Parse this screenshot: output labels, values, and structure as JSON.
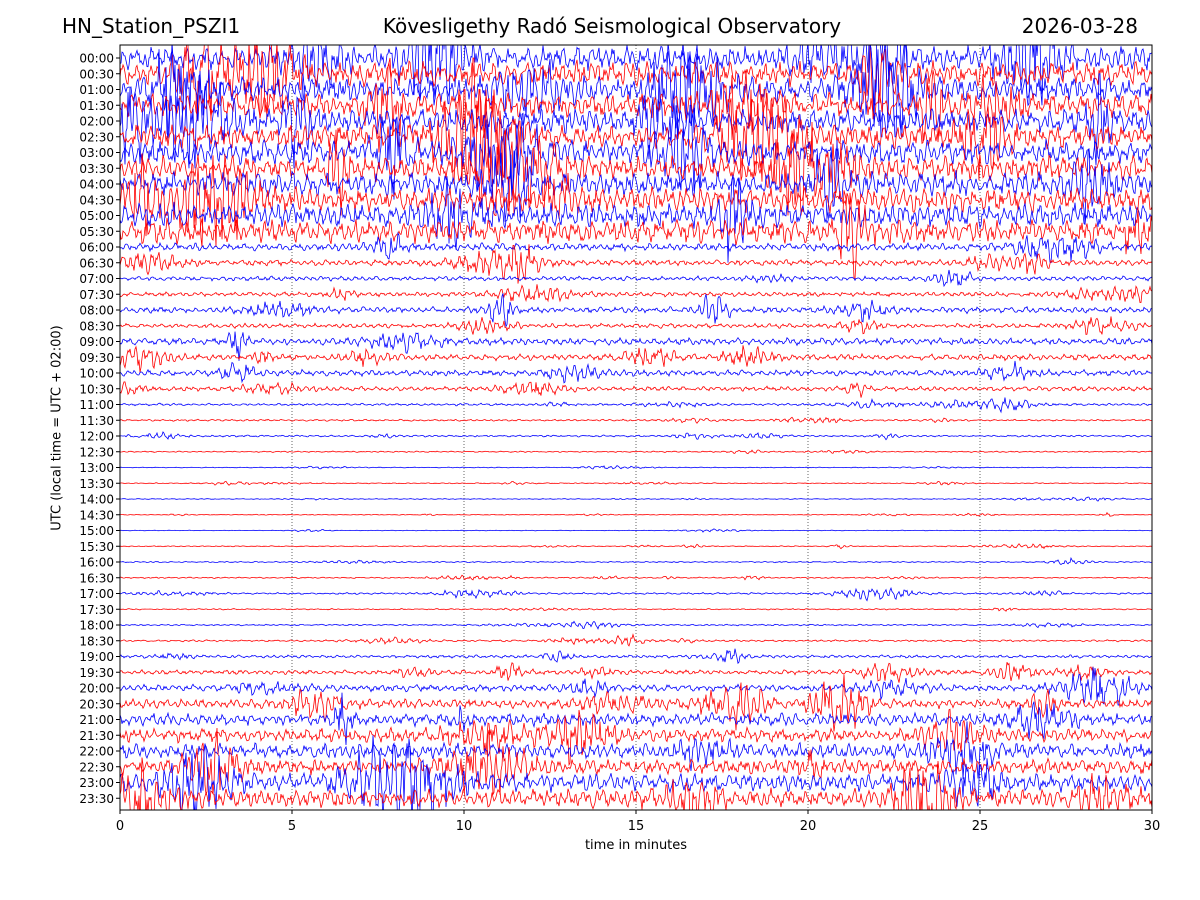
{
  "header": {
    "station": "HN_Station_PSZI1",
    "title": "Kövesligethy Radó Seismological Observatory",
    "date": "2026-03-28"
  },
  "chart_data": {
    "type": "line",
    "title": "Kövesligethy Radó Seismological Observatory",
    "xlabel": "time in minutes",
    "ylabel": "UTC (local time = UTC + 02:00)",
    "xlim": [
      0,
      30
    ],
    "xticks": [
      0,
      5,
      10,
      15,
      20,
      25,
      30
    ],
    "x_gridlines": "dotted vertical lines at each 5-minute tick",
    "row_labels": [
      "00:00",
      "00:30",
      "01:00",
      "01:30",
      "02:00",
      "02:30",
      "03:00",
      "03:30",
      "04:00",
      "04:30",
      "05:00",
      "05:30",
      "06:00",
      "06:30",
      "07:00",
      "07:30",
      "08:00",
      "08:30",
      "09:00",
      "09:30",
      "10:00",
      "10:30",
      "11:00",
      "11:30",
      "12:00",
      "12:30",
      "13:00",
      "13:30",
      "14:00",
      "14:30",
      "15:00",
      "15:30",
      "16:00",
      "16:30",
      "17:00",
      "17:30",
      "18:00",
      "18:30",
      "19:00",
      "19:30",
      "20:00",
      "20:30",
      "21:00",
      "21:30",
      "22:00",
      "22:30",
      "23:00",
      "23:30"
    ],
    "colors": [
      "#0000ff",
      "#ff0000"
    ],
    "row_amplitude": [
      1.6,
      1.6,
      1.6,
      1.6,
      1.6,
      1.6,
      1.6,
      1.6,
      1.6,
      1.6,
      1.6,
      1.6,
      0.5,
      0.4,
      0.3,
      0.3,
      0.4,
      0.3,
      0.45,
      0.4,
      0.4,
      0.3,
      0.15,
      0.12,
      0.12,
      0.08,
      0.05,
      0.06,
      0.05,
      0.05,
      0.04,
      0.06,
      0.08,
      0.08,
      0.12,
      0.08,
      0.1,
      0.12,
      0.2,
      0.3,
      0.45,
      0.6,
      0.8,
      0.9,
      1.0,
      1.0,
      1.2,
      1.2
    ]
  }
}
